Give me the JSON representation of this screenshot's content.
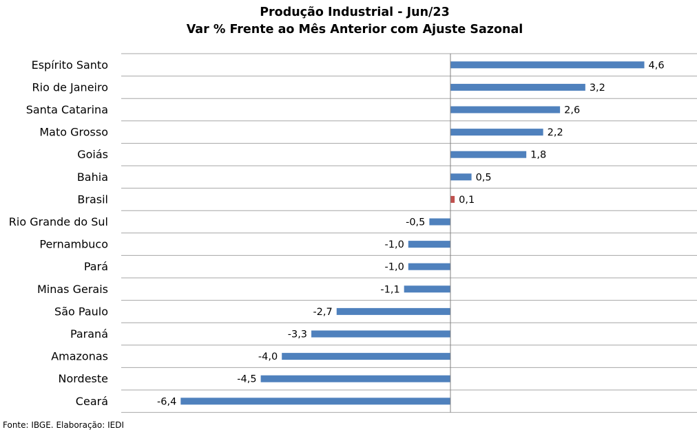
{
  "chart_data": {
    "type": "bar",
    "orientation": "horizontal",
    "title": "Produção Industrial - Jun/23",
    "subtitle": "Var % Frente ao Mês Anterior com Ajuste Sazonal",
    "categories": [
      "Espírito Santo",
      "Rio de Janeiro",
      "Santa Catarina",
      "Mato Grosso",
      "Goiás",
      "Bahia",
      "Brasil",
      "Rio Grande do Sul",
      "Pernambuco",
      "Pará",
      "Minas Gerais",
      "São Paulo",
      "Paraná",
      "Amazonas",
      "Nordeste",
      "Ceará"
    ],
    "values": [
      4.6,
      3.2,
      2.6,
      2.2,
      1.8,
      0.5,
      0.1,
      -0.5,
      -1.0,
      -1.0,
      -1.1,
      -2.7,
      -3.3,
      -4.0,
      -4.5,
      -6.4
    ],
    "value_labels": [
      "4,6",
      "3,2",
      "2,6",
      "2,2",
      "1,8",
      "0,5",
      "0,1",
      "-0,5",
      "-1,0",
      "-1,0",
      "-1,1",
      "-2,7",
      "-3,3",
      "-4,0",
      "-4,5",
      "-6,4"
    ],
    "xlim": [
      -6.4,
      5.2
    ],
    "grid": true,
    "legend": "none",
    "colors": {
      "default": "#4F81BD",
      "highlight": "#C0504D",
      "grid": "#A6A6A6",
      "axis": "#808080"
    },
    "highlight_category": "Brasil"
  },
  "footer": {
    "source": "Fonte: IBGE. Elaboração: IEDI"
  }
}
